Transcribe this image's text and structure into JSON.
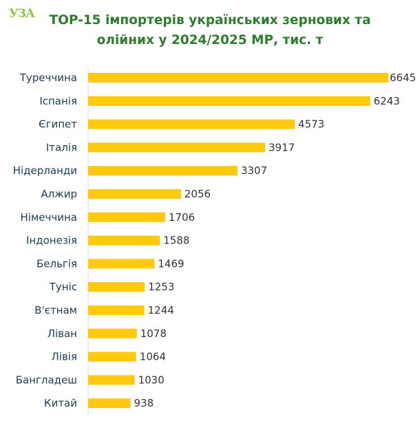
{
  "logo": {
    "text": "УЗА",
    "color": "#8cc63f"
  },
  "chart_data": {
    "type": "bar",
    "orientation": "horizontal",
    "title_line1": "TOP-15 імпортерів українських зернових та",
    "title_line2": "олійних у 2024/2025 МР, тис. т",
    "categories": [
      "Туреччина",
      "Іспанія",
      "Єгипет",
      "Італія",
      "Нідерланди",
      "Алжир",
      "Німеччина",
      "Індонезія",
      "Бельгія",
      "Туніс",
      "В'єтнам",
      "Ліван",
      "Лівія",
      "Бангладеш",
      "Китай"
    ],
    "values": [
      6645,
      6243,
      4573,
      3917,
      3307,
      2056,
      1706,
      1588,
      1469,
      1253,
      1244,
      1078,
      1064,
      1030,
      938
    ],
    "xlim": [
      0,
      6645
    ],
    "bar_color": "#ffc90e",
    "title_color": "#2e7d2e",
    "axis_color": "#d9d9d9",
    "grid": false,
    "legend": "none"
  }
}
